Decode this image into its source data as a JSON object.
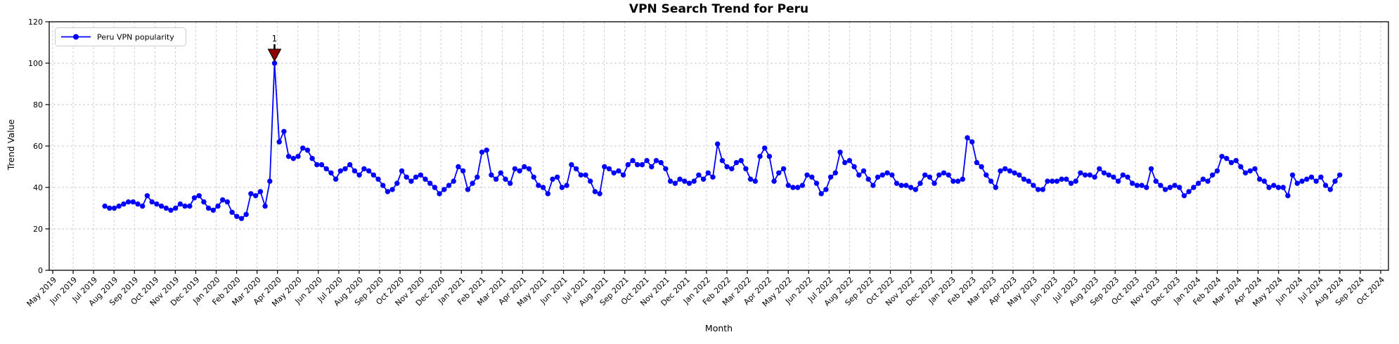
{
  "chart_data": {
    "type": "line",
    "title": "VPN Search Trend for Peru",
    "xlabel": "Month",
    "ylabel": "Trend Value",
    "ylim": [
      0,
      120
    ],
    "yticks": [
      0,
      20,
      40,
      60,
      80,
      100,
      120
    ],
    "grid": true,
    "legend_position": "upper-left",
    "x_tick_labels": [
      "May 2019",
      "Jun 2019",
      "Jul 2019",
      "Aug 2019",
      "Sep 2019",
      "Oct 2019",
      "Nov 2019",
      "Dec 2019",
      "Jan 2020",
      "Feb 2020",
      "Mar 2020",
      "Apr 2020",
      "May 2020",
      "Jun 2020",
      "Jul 2020",
      "Aug 2020",
      "Sep 2020",
      "Oct 2020",
      "Nov 2020",
      "Dec 2020",
      "Jan 2021",
      "Feb 2021",
      "Mar 2021",
      "Apr 2021",
      "May 2021",
      "Jun 2021",
      "Jul 2021",
      "Aug 2021",
      "Sep 2021",
      "Oct 2021",
      "Nov 2021",
      "Dec 2021",
      "Jan 2022",
      "Feb 2022",
      "Mar 2022",
      "Apr 2022",
      "May 2022",
      "Jun 2022",
      "Jul 2022",
      "Aug 2022",
      "Sep 2022",
      "Oct 2022",
      "Nov 2022",
      "Dec 2022",
      "Jan 2023",
      "Feb 2023",
      "Mar 2023",
      "Apr 2023",
      "May 2023",
      "Jun 2023",
      "Jul 2023",
      "Aug 2023",
      "Sep 2023",
      "Oct 2023",
      "Nov 2023",
      "Dec 2023",
      "Jan 2024",
      "Feb 2024",
      "Mar 2024",
      "Apr 2024",
      "May 2024",
      "Jun 2024",
      "Jul 2024",
      "Aug 2024",
      "Sep 2024",
      "Oct 2024"
    ],
    "series": [
      {
        "name": "Peru VPN popularity",
        "color": "#0000ff",
        "marker": "circle",
        "cadence": "weekly",
        "x_start_month_index": 2.55,
        "x_step_months": 0.2307,
        "values": [
          31,
          30,
          30,
          31,
          32,
          33,
          33,
          32,
          31,
          36,
          33,
          32,
          31,
          30,
          29,
          30,
          32,
          31,
          31,
          35,
          36,
          33,
          30,
          29,
          31,
          34,
          33,
          28,
          26,
          25,
          27,
          37,
          36,
          38,
          31,
          43,
          100,
          62,
          67,
          55,
          54,
          55,
          59,
          58,
          54,
          51,
          51,
          49,
          47,
          44,
          48,
          49,
          51,
          48,
          46,
          49,
          48,
          46,
          44,
          41,
          38,
          39,
          42,
          48,
          45,
          43,
          45,
          46,
          44,
          42,
          40,
          37,
          39,
          41,
          43,
          50,
          48,
          39,
          42,
          45,
          57,
          58,
          46,
          44,
          47,
          44,
          42,
          49,
          48,
          50,
          49,
          45,
          41,
          40,
          37,
          44,
          45,
          40,
          41,
          51,
          49,
          46,
          46,
          43,
          38,
          37,
          50,
          49,
          47,
          48,
          46,
          51,
          53,
          51,
          51,
          53,
          50,
          53,
          52,
          49,
          43,
          42,
          44,
          43,
          42,
          43,
          46,
          44,
          47,
          45,
          61,
          53,
          50,
          49,
          52,
          53,
          49,
          44,
          43,
          55,
          59,
          55,
          43,
          47,
          49,
          41,
          40,
          40,
          41,
          46,
          45,
          42,
          37,
          39,
          45,
          47,
          57,
          52,
          53,
          50,
          46,
          48,
          44,
          41,
          45,
          46,
          47,
          46,
          42,
          41,
          41,
          40,
          39,
          42,
          46,
          45,
          42,
          46,
          47,
          46,
          43,
          43,
          44,
          64,
          62,
          52,
          50,
          46,
          43,
          40,
          48,
          49,
          48,
          47,
          46,
          44,
          43,
          41,
          39,
          39,
          43,
          43,
          43,
          44,
          44,
          42,
          43,
          47,
          46,
          46,
          45,
          49,
          47,
          46,
          45,
          43,
          46,
          45,
          42,
          41,
          41,
          40,
          49,
          43,
          41,
          39,
          40,
          41,
          40,
          36,
          38,
          40,
          42,
          44,
          43,
          46,
          48,
          55,
          54,
          52,
          53,
          50,
          47,
          48,
          49,
          44,
          43,
          40,
          41,
          40,
          40,
          36,
          46,
          42,
          43,
          44,
          45,
          43,
          45,
          41,
          39,
          43,
          46
        ]
      }
    ],
    "annotation": {
      "label": "1",
      "color": "#8b0000",
      "target": "max-point",
      "target_value": 100
    },
    "colors": {
      "line": "#0000ff",
      "annotation": "#8b0000",
      "grid": "#c9c9c9",
      "spine": "#000000",
      "legend_border": "#cccccc",
      "background": "#ffffff"
    }
  }
}
